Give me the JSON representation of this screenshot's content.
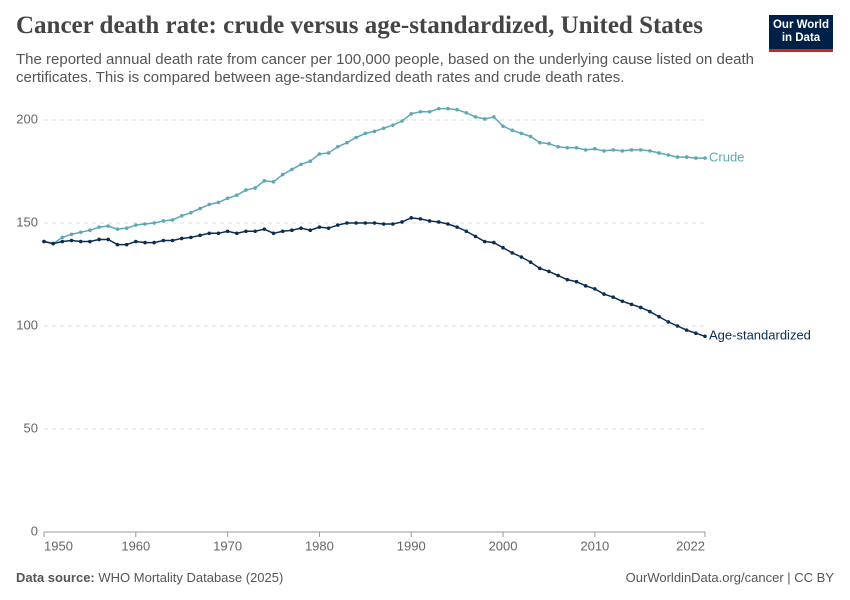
{
  "chart_data": {
    "type": "line",
    "title": "Cancer death rate: crude versus age-standardized, United States",
    "subtitle": "The reported annual death rate from cancer per 100,000 people, based on the underlying cause listed on death certificates. This is compared between age-standardized death rates and crude death rates.",
    "logo": [
      "Our World",
      "in Data"
    ],
    "source_label": "Data source:",
    "source": "WHO Mortality Database (2025)",
    "footer": "OurWorldinData.org/cancer | CC BY",
    "x": [
      1950,
      1951,
      1952,
      1953,
      1954,
      1955,
      1956,
      1957,
      1958,
      1959,
      1960,
      1961,
      1962,
      1963,
      1964,
      1965,
      1966,
      1967,
      1968,
      1969,
      1970,
      1971,
      1972,
      1973,
      1974,
      1975,
      1976,
      1977,
      1978,
      1979,
      1980,
      1981,
      1982,
      1983,
      1984,
      1985,
      1986,
      1987,
      1988,
      1989,
      1990,
      1991,
      1992,
      1993,
      1994,
      1995,
      1996,
      1997,
      1998,
      1999,
      2000,
      2001,
      2002,
      2003,
      2004,
      2005,
      2006,
      2007,
      2008,
      2009,
      2010,
      2011,
      2012,
      2013,
      2014,
      2015,
      2016,
      2017,
      2018,
      2019,
      2020,
      2021,
      2022
    ],
    "series": [
      {
        "name": "Crude",
        "color": "#5ca8b5",
        "values": [
          141,
          140,
          143,
          144.5,
          145.5,
          146.5,
          148,
          148.5,
          147,
          147.5,
          149,
          149.5,
          150,
          151,
          151.5,
          153.5,
          155,
          157,
          159,
          160,
          162,
          163.5,
          166,
          167,
          170.5,
          170,
          173.5,
          176,
          178.5,
          180,
          183.5,
          184,
          187,
          189,
          191.5,
          193.5,
          194.5,
          196,
          197.5,
          199.5,
          203,
          204,
          204,
          205.5,
          205.5,
          205,
          203.5,
          201.5,
          200.5,
          201.5,
          197,
          195,
          193.5,
          192,
          189,
          188.5,
          187,
          186.5,
          186.5,
          185.5,
          186,
          185,
          185.5,
          185,
          185.5,
          185.5,
          185,
          184,
          183,
          182,
          182,
          181.5,
          181.5
        ]
      },
      {
        "name": "Age-standardized",
        "color": "#0b2d52",
        "values": [
          141,
          140,
          141,
          141.5,
          141,
          141,
          142,
          142,
          139.5,
          139.5,
          141,
          140.5,
          140.5,
          141.5,
          141.5,
          142.5,
          143,
          144,
          145,
          145,
          146,
          145,
          146,
          146,
          147,
          145,
          146,
          146.5,
          147.5,
          146.5,
          148,
          147.5,
          149,
          150,
          150,
          150,
          150,
          149.5,
          149.5,
          150.5,
          152.5,
          152,
          151,
          150.5,
          149.5,
          148,
          146,
          143.5,
          141,
          140.5,
          138,
          135.5,
          133.5,
          131,
          128,
          126.5,
          124.5,
          122.5,
          121.5,
          119.5,
          118,
          115.5,
          114,
          112,
          110.5,
          109,
          107,
          104.5,
          102,
          100,
          98,
          96.5,
          95
        ]
      }
    ],
    "xlim": [
      1950,
      2022
    ],
    "xticks": [
      1950,
      1960,
      1970,
      1980,
      1990,
      2000,
      2010,
      2022
    ],
    "ylim": [
      0,
      200
    ],
    "yticks": [
      0,
      50,
      100,
      150,
      200
    ],
    "grid": true
  }
}
